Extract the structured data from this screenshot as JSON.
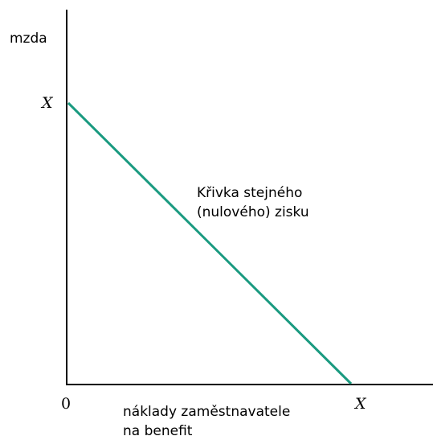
{
  "y_axis": {
    "label": "mzda",
    "max_label": "X"
  },
  "x_axis": {
    "origin_label": "0",
    "label_lines": [
      "náklady zaměstnavatele",
      "na benefit"
    ],
    "max_label": "X"
  },
  "curve": {
    "label_lines": [
      "Křivka stejného",
      "(nulového) zisku"
    ]
  }
}
